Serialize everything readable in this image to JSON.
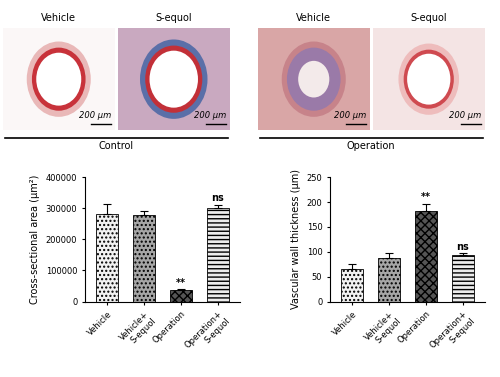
{
  "images": {
    "labels": [
      "Vehicle",
      "S-equol",
      "Vehicle",
      "S-equol"
    ],
    "scale_bars": [
      "200 μm",
      "200 μm",
      "200 μm",
      "200 μm"
    ],
    "groups": [
      "Control",
      "Operation"
    ]
  },
  "chart_data": [
    {
      "type": "bar",
      "y_label": "Cross-sectional area (μm²)",
      "categories": [
        "Vehicle",
        "Vehicle+\nS-equol",
        "Operation",
        "Operation+\nS-equol"
      ],
      "values": [
        282000,
        278000,
        38000,
        300000
      ],
      "errors": [
        32000,
        12000,
        3000,
        12000
      ],
      "colors": [
        "#f2f2f2",
        "#a6a6a6",
        "#555555",
        "#ececec"
      ],
      "ylim": [
        0,
        400000
      ],
      "yticks": [
        0,
        100000,
        200000,
        300000,
        400000
      ],
      "annotations": [
        {
          "category": "Operation",
          "text": "**"
        },
        {
          "category": "Operation+\nS-equol",
          "text": "ns"
        }
      ]
    },
    {
      "type": "bar",
      "y_label": "Vascular wall thickness (μm)",
      "categories": [
        "Vehicle",
        "Vehicle+\nS-equol",
        "Operation",
        "Operation+\nS-equol"
      ],
      "values": [
        65,
        88,
        182,
        93
      ],
      "errors": [
        10,
        10,
        15,
        4
      ],
      "colors": [
        "#f2f2f2",
        "#a6a6a6",
        "#555555",
        "#ececec"
      ],
      "ylim": [
        0,
        250
      ],
      "yticks": [
        0,
        50,
        100,
        150,
        200,
        250
      ],
      "annotations": [
        {
          "category": "Operation",
          "text": "**"
        },
        {
          "category": "Operation+\nS-equol",
          "text": "ns"
        }
      ]
    }
  ]
}
